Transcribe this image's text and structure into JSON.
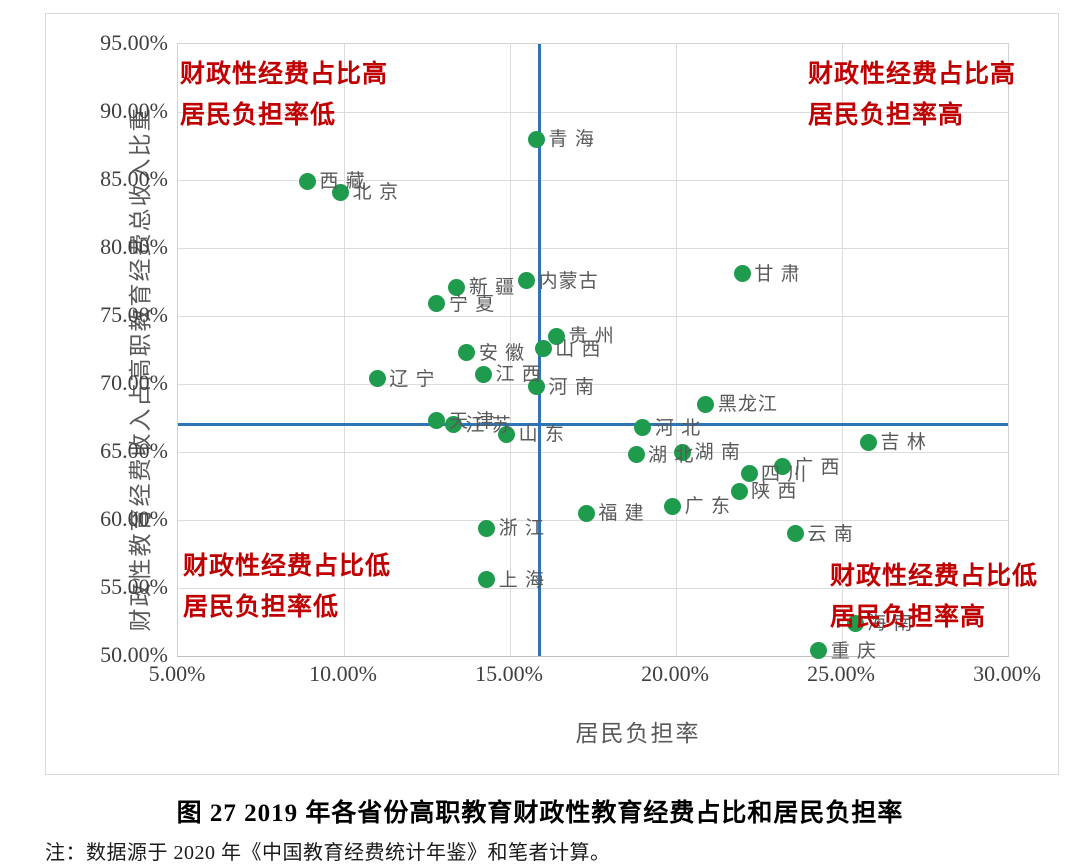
{
  "figure": {
    "caption": "图 27  2019 年各省份高职教育财政性教育经费占比和居民负担率",
    "note": "注：数据源于 2020 年《中国教育经费统计年鉴》和笔者计算。"
  },
  "chart_data": {
    "type": "scatter",
    "title": "",
    "xlabel": "居民负担率",
    "ylabel": "财政性教育经费收入占高职教育经费总收入比重",
    "xlim": [
      5,
      30
    ],
    "ylim": [
      50,
      95
    ],
    "grid": true,
    "legend_position": "none",
    "marker_color": "#1f9b4e",
    "crosshair_color": "#2e75b6",
    "annotation_color": "#c00000",
    "x_ticks": [
      {
        "value": 5,
        "label": "5.00%"
      },
      {
        "value": 10,
        "label": "10.00%"
      },
      {
        "value": 15,
        "label": "15.00%"
      },
      {
        "value": 20,
        "label": "20.00%"
      },
      {
        "value": 25,
        "label": "25.00%"
      },
      {
        "value": 30,
        "label": "30.00%"
      }
    ],
    "y_ticks": [
      {
        "value": 95,
        "label": "95.00%"
      },
      {
        "value": 90,
        "label": "90.00%"
      },
      {
        "value": 85,
        "label": "85.00%"
      },
      {
        "value": 80,
        "label": "80.00%"
      },
      {
        "value": 75,
        "label": "75.00%"
      },
      {
        "value": 70,
        "label": "70.00%"
      },
      {
        "value": 65,
        "label": "65.00%"
      },
      {
        "value": 60,
        "label": "60.00%"
      },
      {
        "value": 55,
        "label": "55.00%"
      },
      {
        "value": 50,
        "label": "50.00%"
      }
    ],
    "crosshair": {
      "x": 15.9,
      "y": 67.0
    },
    "quadrant_annotations": [
      {
        "position": "top-left",
        "lines": [
          "财政性经费占比高",
          "居民负担率低"
        ]
      },
      {
        "position": "top-right",
        "lines": [
          "财政性经费占比高",
          "居民负担率高"
        ]
      },
      {
        "position": "bottom-left",
        "lines": [
          "财政性经费占比低",
          "居民负担率低"
        ]
      },
      {
        "position": "bottom-right",
        "lines": [
          "财政性经费占比低",
          "居民负担率高"
        ]
      }
    ],
    "points": [
      {
        "name": "青 海",
        "x": 15.8,
        "y": 88.0
      },
      {
        "name": "西 藏",
        "x": 8.9,
        "y": 84.9
      },
      {
        "name": "北 京",
        "x": 9.9,
        "y": 84.1
      },
      {
        "name": "甘 肃",
        "x": 22.0,
        "y": 78.1
      },
      {
        "name": "内蒙古",
        "x": 15.5,
        "y": 77.6
      },
      {
        "name": "新 疆",
        "x": 13.4,
        "y": 77.1
      },
      {
        "name": "宁 夏",
        "x": 12.8,
        "y": 75.9
      },
      {
        "name": "贵 州",
        "x": 16.4,
        "y": 73.5
      },
      {
        "name": "山 西",
        "x": 16.0,
        "y": 72.6
      },
      {
        "name": "安 徽",
        "x": 13.7,
        "y": 72.3
      },
      {
        "name": "江 西",
        "x": 14.2,
        "y": 70.7
      },
      {
        "name": "辽 宁",
        "x": 11.0,
        "y": 70.4
      },
      {
        "name": "河 南",
        "x": 15.8,
        "y": 69.8
      },
      {
        "name": "黑龙江",
        "x": 20.9,
        "y": 68.5
      },
      {
        "name": "天 津",
        "x": 12.8,
        "y": 67.3
      },
      {
        "name": "江 苏",
        "x": 13.3,
        "y": 67.0
      },
      {
        "name": "河 北",
        "x": 19.0,
        "y": 66.8
      },
      {
        "name": "山 东",
        "x": 14.9,
        "y": 66.3
      },
      {
        "name": "吉 林",
        "x": 25.8,
        "y": 65.7
      },
      {
        "name": "湖 南",
        "x": 20.2,
        "y": 65.0
      },
      {
        "name": "湖 北",
        "x": 18.8,
        "y": 64.8
      },
      {
        "name": "广 西",
        "x": 23.2,
        "y": 63.9
      },
      {
        "name": "四 川",
        "x": 22.2,
        "y": 63.4
      },
      {
        "name": "陕 西",
        "x": 21.9,
        "y": 62.1
      },
      {
        "name": "广 东",
        "x": 19.9,
        "y": 61.0
      },
      {
        "name": "福 建",
        "x": 17.3,
        "y": 60.5
      },
      {
        "name": "浙 江",
        "x": 14.3,
        "y": 59.4
      },
      {
        "name": "云 南",
        "x": 23.6,
        "y": 59.0
      },
      {
        "name": "上 海",
        "x": 14.3,
        "y": 55.6
      },
      {
        "name": "海 南",
        "x": 25.4,
        "y": 52.4
      },
      {
        "name": "重 庆",
        "x": 24.3,
        "y": 50.4
      }
    ]
  }
}
